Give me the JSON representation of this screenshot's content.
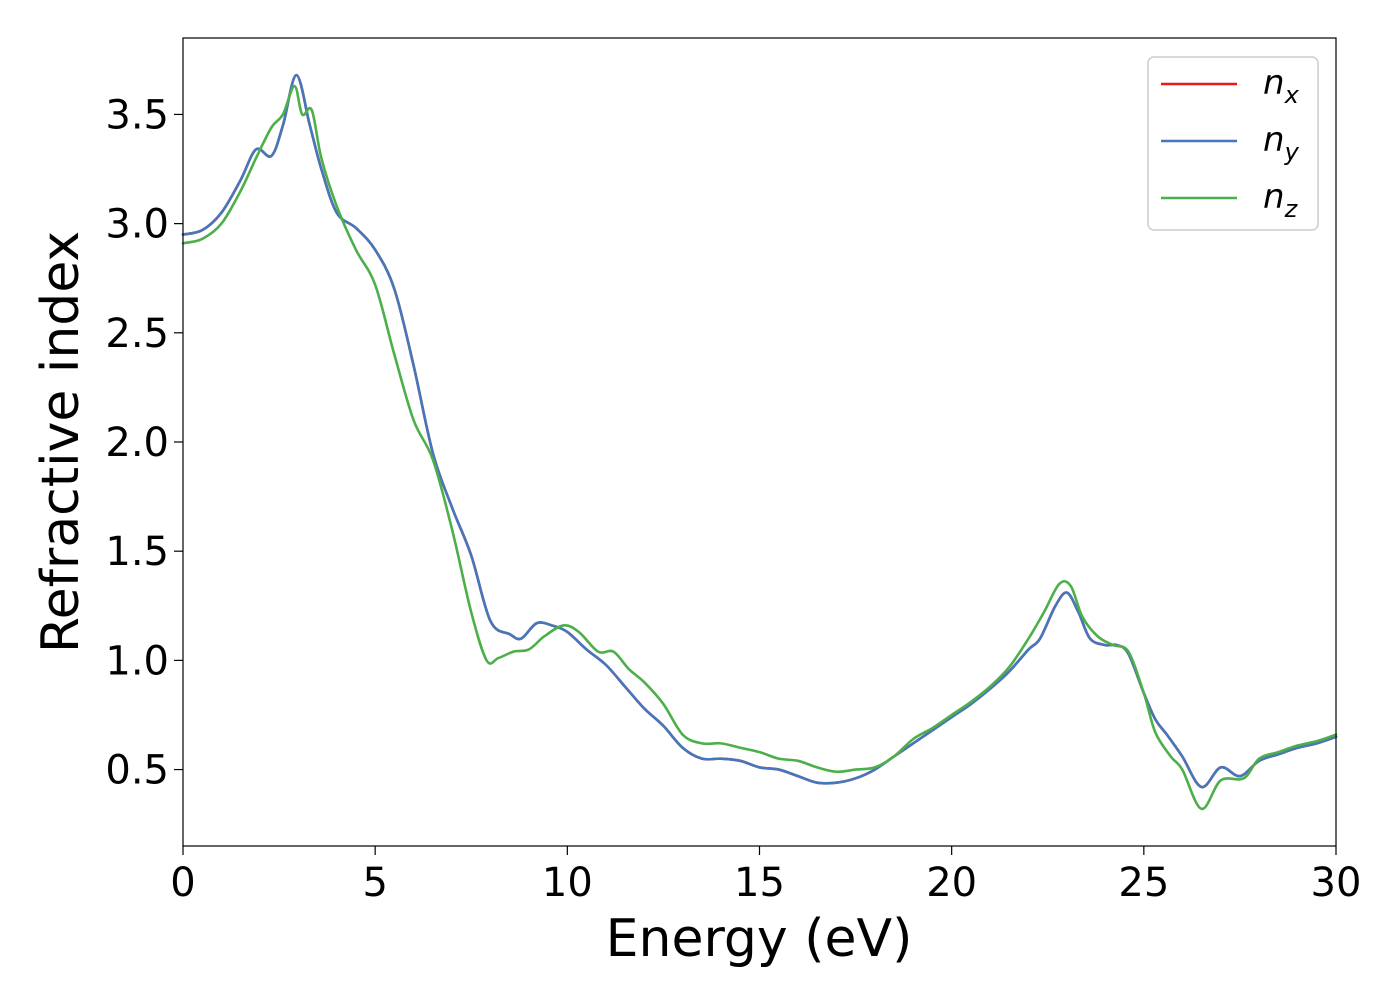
{
  "chart_data": {
    "type": "line",
    "title": "",
    "xlabel": "Energy (eV)",
    "ylabel": "Refractive index",
    "xlim": [
      0,
      30
    ],
    "ylim": [
      0.15,
      3.85
    ],
    "xticks": [
      0,
      5,
      10,
      15,
      20,
      25,
      30
    ],
    "xtick_labels": [
      "0",
      "5",
      "10",
      "15",
      "20",
      "25",
      "30"
    ],
    "yticks": [
      0.5,
      1.0,
      1.5,
      2.0,
      2.5,
      3.0,
      3.5
    ],
    "ytick_labels": [
      "0.5",
      "1.0",
      "1.5",
      "2.0",
      "2.5",
      "3.0",
      "3.5"
    ],
    "grid": false,
    "legend_position": "top-right",
    "series": [
      {
        "name": "n",
        "subscript": "x",
        "color": "#e41a1c",
        "x": [
          0,
          0.5,
          1.0,
          1.5,
          1.9,
          2.3,
          2.6,
          2.95,
          3.3,
          3.6,
          4.0,
          4.5,
          5.0,
          5.5,
          6.0,
          6.5,
          7.0,
          7.5,
          8.0,
          8.5,
          8.8,
          9.2,
          9.6,
          10.0,
          10.5,
          11.0,
          11.5,
          12.0,
          12.5,
          13.0,
          13.5,
          14.0,
          14.5,
          15.0,
          15.5,
          16.0,
          16.5,
          17.0,
          17.5,
          18.0,
          18.5,
          19.0,
          19.5,
          20.0,
          20.5,
          21.0,
          21.5,
          22.0,
          22.3,
          22.7,
          23.0,
          23.3,
          23.6,
          24.0,
          24.3,
          24.6,
          25.0,
          25.3,
          25.6,
          26.0,
          26.5,
          27.0,
          27.5,
          28.0,
          28.5,
          29.0,
          29.5,
          30.0
        ],
        "y": [
          2.95,
          2.97,
          3.05,
          3.2,
          3.34,
          3.31,
          3.45,
          3.68,
          3.45,
          3.25,
          3.05,
          2.98,
          2.88,
          2.7,
          2.35,
          1.95,
          1.7,
          1.48,
          1.18,
          1.12,
          1.1,
          1.17,
          1.16,
          1.13,
          1.05,
          0.98,
          0.88,
          0.78,
          0.7,
          0.6,
          0.55,
          0.55,
          0.54,
          0.51,
          0.5,
          0.47,
          0.44,
          0.44,
          0.46,
          0.5,
          0.56,
          0.62,
          0.68,
          0.74,
          0.8,
          0.87,
          0.95,
          1.05,
          1.1,
          1.25,
          1.31,
          1.22,
          1.1,
          1.07,
          1.07,
          1.03,
          0.85,
          0.73,
          0.66,
          0.56,
          0.42,
          0.51,
          0.47,
          0.54,
          0.57,
          0.6,
          0.62,
          0.65
        ]
      },
      {
        "name": "n",
        "subscript": "y",
        "color": "#4477bb",
        "x": [
          0,
          0.5,
          1.0,
          1.5,
          1.9,
          2.3,
          2.6,
          2.95,
          3.3,
          3.6,
          4.0,
          4.5,
          5.0,
          5.5,
          6.0,
          6.5,
          7.0,
          7.5,
          8.0,
          8.5,
          8.8,
          9.2,
          9.6,
          10.0,
          10.5,
          11.0,
          11.5,
          12.0,
          12.5,
          13.0,
          13.5,
          14.0,
          14.5,
          15.0,
          15.5,
          16.0,
          16.5,
          17.0,
          17.5,
          18.0,
          18.5,
          19.0,
          19.5,
          20.0,
          20.5,
          21.0,
          21.5,
          22.0,
          22.3,
          22.7,
          23.0,
          23.3,
          23.6,
          24.0,
          24.3,
          24.6,
          25.0,
          25.3,
          25.6,
          26.0,
          26.5,
          27.0,
          27.5,
          28.0,
          28.5,
          29.0,
          29.5,
          30.0
        ],
        "y": [
          2.95,
          2.97,
          3.05,
          3.2,
          3.34,
          3.31,
          3.45,
          3.68,
          3.45,
          3.25,
          3.05,
          2.98,
          2.88,
          2.7,
          2.35,
          1.95,
          1.7,
          1.48,
          1.18,
          1.12,
          1.1,
          1.17,
          1.16,
          1.13,
          1.05,
          0.98,
          0.88,
          0.78,
          0.7,
          0.6,
          0.55,
          0.55,
          0.54,
          0.51,
          0.5,
          0.47,
          0.44,
          0.44,
          0.46,
          0.5,
          0.56,
          0.62,
          0.68,
          0.74,
          0.8,
          0.87,
          0.95,
          1.05,
          1.1,
          1.25,
          1.31,
          1.22,
          1.1,
          1.07,
          1.07,
          1.03,
          0.85,
          0.73,
          0.66,
          0.56,
          0.42,
          0.51,
          0.47,
          0.54,
          0.57,
          0.6,
          0.62,
          0.65
        ]
      },
      {
        "name": "n",
        "subscript": "z",
        "color": "#4daf4a",
        "x": [
          0,
          0.5,
          1.0,
          1.5,
          1.9,
          2.3,
          2.6,
          2.9,
          3.1,
          3.35,
          3.6,
          4.0,
          4.5,
          5.0,
          5.5,
          6.0,
          6.5,
          7.0,
          7.5,
          7.9,
          8.2,
          8.6,
          9.0,
          9.4,
          9.9,
          10.3,
          10.8,
          11.2,
          11.6,
          12.0,
          12.5,
          13.0,
          13.5,
          14.0,
          14.5,
          15.0,
          15.5,
          16.0,
          16.5,
          17.0,
          17.5,
          18.0,
          18.5,
          19.0,
          19.5,
          20.0,
          20.5,
          21.0,
          21.5,
          22.0,
          22.4,
          22.8,
          23.1,
          23.4,
          23.8,
          24.2,
          24.6,
          25.0,
          25.3,
          25.7,
          26.0,
          26.5,
          27.0,
          27.6,
          28.0,
          28.5,
          29.0,
          29.5,
          30.0
        ],
        "y": [
          2.91,
          2.93,
          3.0,
          3.15,
          3.3,
          3.44,
          3.5,
          3.63,
          3.5,
          3.52,
          3.3,
          3.08,
          2.88,
          2.72,
          2.4,
          2.1,
          1.92,
          1.6,
          1.22,
          1.0,
          1.01,
          1.04,
          1.05,
          1.11,
          1.16,
          1.13,
          1.04,
          1.04,
          0.96,
          0.9,
          0.8,
          0.66,
          0.62,
          0.62,
          0.6,
          0.58,
          0.55,
          0.54,
          0.51,
          0.49,
          0.5,
          0.51,
          0.56,
          0.64,
          0.69,
          0.75,
          0.81,
          0.88,
          0.97,
          1.1,
          1.22,
          1.35,
          1.34,
          1.2,
          1.11,
          1.07,
          1.04,
          0.85,
          0.67,
          0.56,
          0.5,
          0.32,
          0.45,
          0.46,
          0.55,
          0.58,
          0.61,
          0.63,
          0.66
        ]
      }
    ]
  }
}
